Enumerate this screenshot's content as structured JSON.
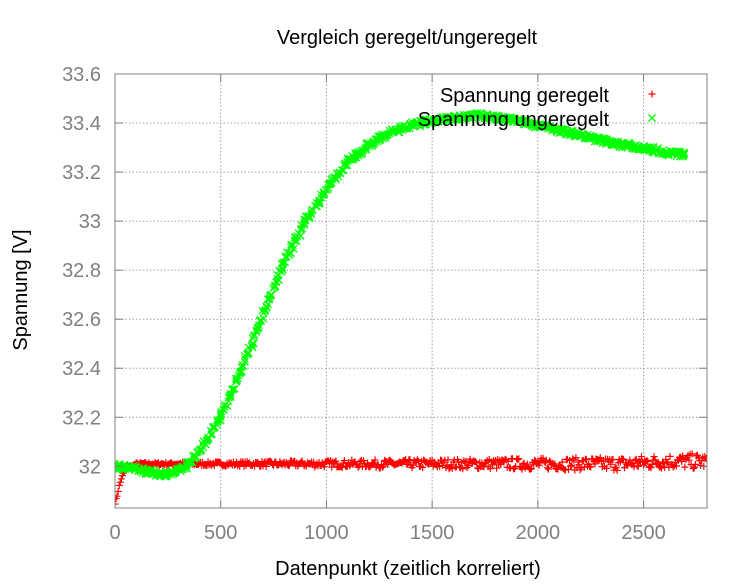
{
  "chart_data": {
    "type": "scatter",
    "title": "Vergleich geregelt/ungeregelt",
    "xlabel": "Datenpunkt (zeitlich korreliert)",
    "ylabel": "Spannung [V]",
    "xlim": [
      0,
      2800
    ],
    "ylim": [
      31.83,
      33.6
    ],
    "x_ticks": [
      0,
      500,
      1000,
      1500,
      2000,
      2500
    ],
    "x_tick_labels": [
      "0",
      "500",
      "1000",
      "1500",
      "2000",
      "2500"
    ],
    "y_ticks": [
      32,
      32.2,
      32.4,
      32.6,
      32.8,
      33,
      33.2,
      33.4,
      33.6
    ],
    "y_tick_labels": [
      "32",
      "32.2",
      "32.4",
      "32.6",
      "32.8",
      "33",
      "33.2",
      "33.4",
      "33.6"
    ],
    "grid": true,
    "legend_position": "top-right",
    "series": [
      {
        "name": "Spannung geregelt",
        "marker": "+",
        "color": "#ff0000",
        "x": [
          0,
          10,
          20,
          30,
          40,
          50,
          60,
          80,
          100,
          150,
          200,
          300,
          400,
          500,
          600,
          800,
          1000,
          1200,
          1400,
          1600,
          1800,
          2000,
          2200,
          2400,
          2600,
          2800
        ],
        "y": [
          31.85,
          31.88,
          31.92,
          31.95,
          31.97,
          31.99,
          32.0,
          32.0,
          32.01,
          32.01,
          32.01,
          32.01,
          32.01,
          32.01,
          32.01,
          32.01,
          32.01,
          32.01,
          32.01,
          32.01,
          32.01,
          32.01,
          32.01,
          32.01,
          32.02,
          32.02
        ]
      },
      {
        "name": "Spannung ungeregelt",
        "marker": "x",
        "color": "#00ff00",
        "x": [
          0,
          100,
          200,
          250,
          300,
          350,
          400,
          500,
          600,
          700,
          800,
          900,
          1000,
          1100,
          1200,
          1300,
          1400,
          1500,
          1600,
          1700,
          1750,
          1800,
          1900,
          2000,
          2100,
          2200,
          2300,
          2400,
          2500,
          2600,
          2700
        ],
        "y": [
          32.0,
          31.99,
          31.97,
          31.97,
          31.98,
          32.01,
          32.06,
          32.2,
          32.4,
          32.62,
          32.83,
          33.0,
          33.13,
          33.24,
          33.31,
          33.36,
          33.39,
          33.41,
          33.42,
          33.43,
          33.43,
          33.42,
          33.41,
          33.39,
          33.37,
          33.35,
          33.33,
          33.31,
          33.3,
          33.28,
          33.27
        ]
      }
    ]
  }
}
